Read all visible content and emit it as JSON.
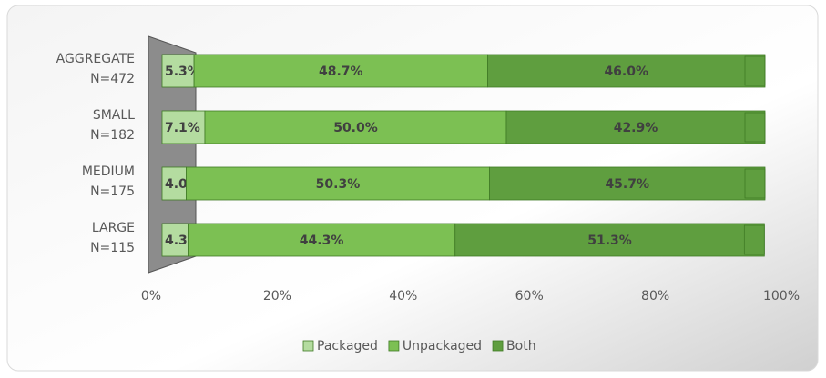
{
  "chart_data": {
    "type": "bar",
    "orientation": "horizontal",
    "stacked": true,
    "categories": [
      "AGGREGATE\nN=472",
      "SMALL\nN=182",
      "MEDIUM\nN=175",
      "LARGE\nN=115"
    ],
    "series": [
      {
        "name": "Packaged",
        "color": "#b4dca0",
        "values": [
          5.3,
          7.1,
          4.0,
          4.3
        ],
        "value_labels": [
          "5.3%",
          "7.1%",
          "4.0%",
          "4.3%"
        ]
      },
      {
        "name": "Unpackaged",
        "color": "#7cc053",
        "values": [
          48.7,
          50.0,
          50.3,
          44.3
        ],
        "value_labels": [
          "48.7%",
          "50.0%",
          "50.3%",
          "44.3%"
        ]
      },
      {
        "name": "Both",
        "color": "#5f9e3f",
        "values": [
          46.0,
          42.9,
          45.7,
          51.3
        ],
        "value_labels": [
          "46.0%",
          "42.9%",
          "45.7%",
          "51.3%"
        ]
      }
    ],
    "xlim": [
      0,
      100
    ],
    "xticks": [
      {
        "value": 0,
        "label": "0%"
      },
      {
        "value": 20,
        "label": "20%"
      },
      {
        "value": 40,
        "label": "40%"
      },
      {
        "value": 60,
        "label": "60%"
      },
      {
        "value": 80,
        "label": "80%"
      },
      {
        "value": 100,
        "label": "100%"
      }
    ],
    "legend": "bottom"
  }
}
